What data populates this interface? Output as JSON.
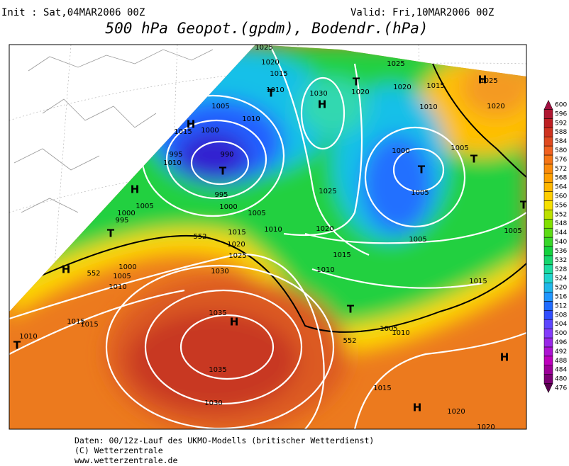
{
  "header": {
    "init": "Init : Sat,04MAR2006 00Z",
    "valid": "Valid: Fri,10MAR2006 00Z",
    "title": "500 hPa Geopot.(gpdm), Bodendr.(hPa)"
  },
  "map_labels": [
    "1025",
    "1020",
    "1015",
    "T",
    "1010",
    "1030",
    "H",
    "1020",
    "T",
    "1025",
    "1020",
    "1015",
    "H",
    "1025",
    "1020",
    "1010",
    "1005",
    "1010",
    "1000",
    "H",
    "1015",
    "990",
    "995",
    "1010",
    "T",
    "1000",
    "T",
    "1005",
    "T",
    "995",
    "1000",
    "1005",
    "1025",
    "1005",
    "H",
    "1005",
    "1000",
    "995",
    "T",
    "1015",
    "1010",
    "1020",
    "1005",
    "T",
    "1020",
    "1025",
    "1030",
    "1005",
    "1000",
    "1005",
    "1010",
    "H",
    "1015",
    "1010",
    "1035",
    "H",
    "1015",
    "1015",
    "T",
    "1005",
    "1015",
    "1010",
    "T",
    "1010",
    "1035",
    "H",
    "1015",
    "1030",
    "H",
    "1020",
    "1020",
    "552",
    "552",
    "552"
  ],
  "color_scale": {
    "values": [
      476,
      480,
      484,
      488,
      492,
      496,
      500,
      504,
      508,
      512,
      516,
      520,
      524,
      528,
      532,
      536,
      540,
      544,
      548,
      552,
      556,
      560,
      564,
      568,
      572,
      576,
      580,
      584,
      588,
      592,
      596,
      600
    ]
  },
  "footer": {
    "source": "Daten: 00/12z-Lauf des UKMO-Modells (britischer Wetterdienst)",
    "copyright": "(C) Wetterzentrale",
    "url": "www.wetterzentrale.de"
  }
}
